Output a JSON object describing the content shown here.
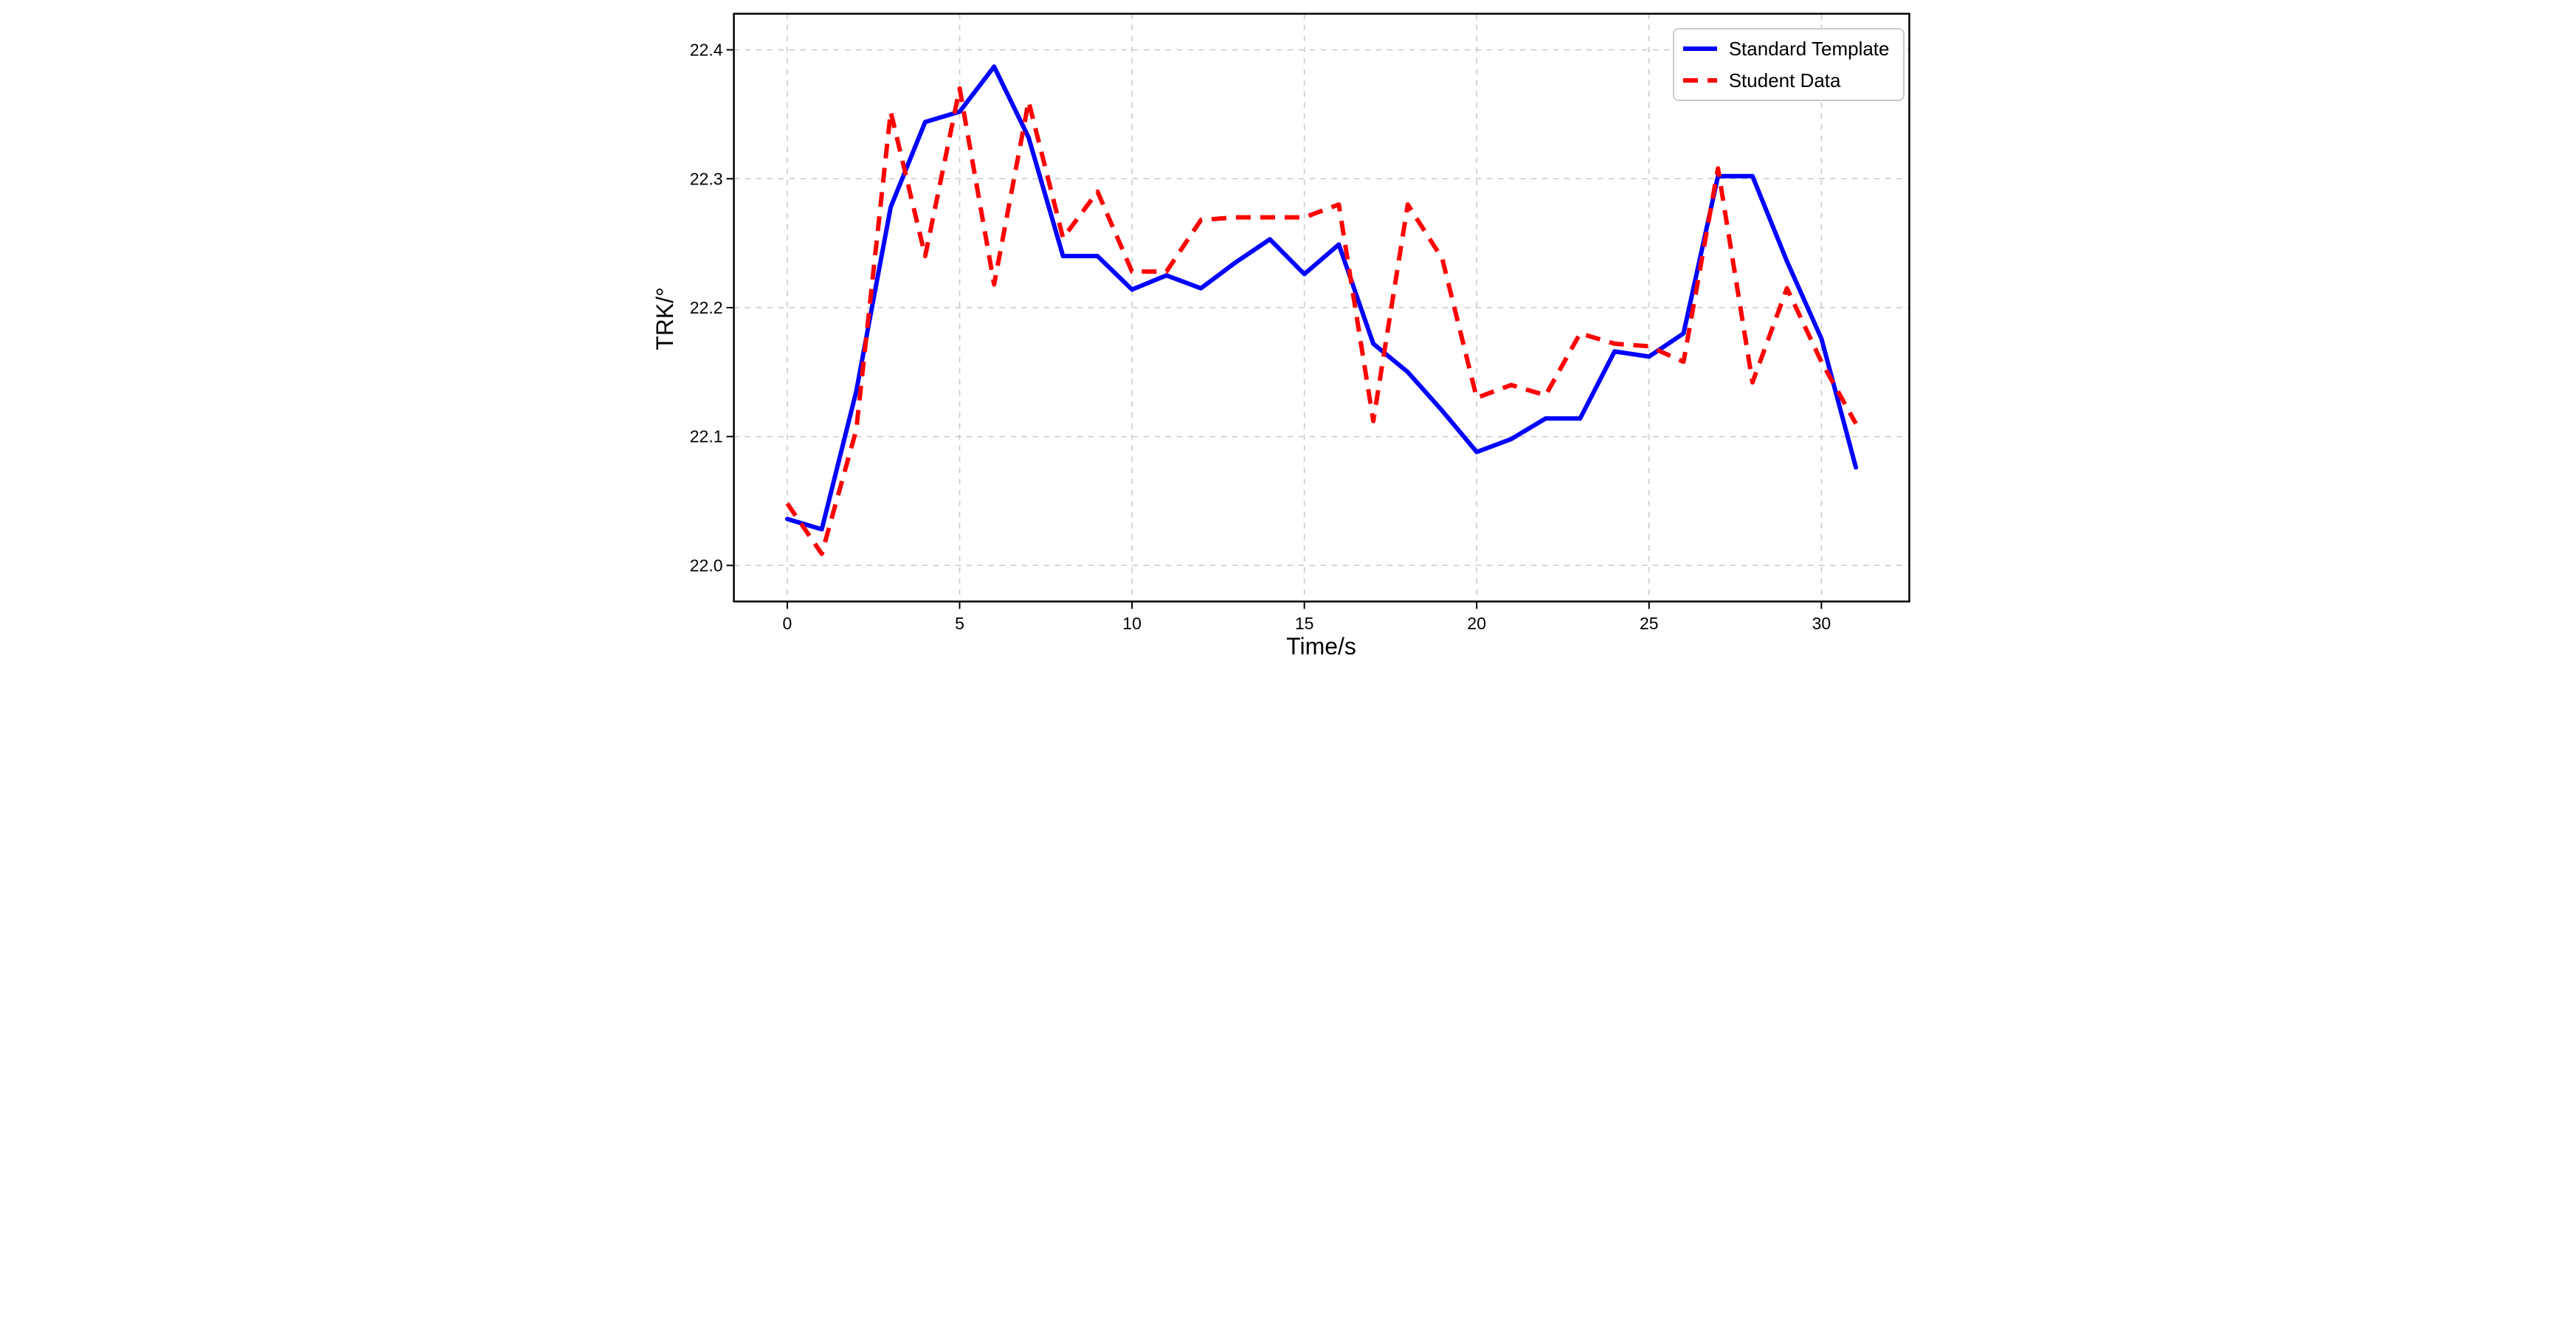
{
  "chart_data": {
    "type": "line",
    "title": "",
    "xlabel": "Time/s",
    "ylabel": "TRK/°",
    "x": [
      0,
      1,
      2,
      3,
      4,
      5,
      6,
      7,
      8,
      9,
      10,
      11,
      12,
      13,
      14,
      15,
      16,
      17,
      18,
      19,
      20,
      21,
      22,
      23,
      24,
      25,
      26,
      27,
      28,
      29,
      30,
      31
    ],
    "series": [
      {
        "name": "Standard Template",
        "color": "#0000ff",
        "line_style": "solid",
        "values": [
          22.036,
          22.028,
          22.135,
          22.278,
          22.344,
          22.352,
          22.387,
          22.332,
          22.24,
          22.24,
          22.214,
          22.225,
          22.215,
          22.235,
          22.253,
          22.226,
          22.249,
          22.172,
          22.15,
          22.12,
          22.088,
          22.098,
          22.114,
          22.114,
          22.166,
          22.162,
          22.18,
          22.302,
          22.302,
          22.236,
          22.176,
          22.076
        ]
      },
      {
        "name": "Student Data",
        "color": "#ff0000",
        "line_style": "dashed",
        "values": [
          22.048,
          22.009,
          22.105,
          22.352,
          22.24,
          22.37,
          22.218,
          22.36,
          22.254,
          22.29,
          22.228,
          22.228,
          22.268,
          22.27,
          22.27,
          22.27,
          22.28,
          22.112,
          22.28,
          22.238,
          22.13,
          22.14,
          22.132,
          22.18,
          22.172,
          22.17,
          22.158,
          22.308,
          22.142,
          22.215,
          22.158,
          22.11
        ]
      }
    ],
    "xticks": [
      0,
      5,
      10,
      15,
      20,
      25,
      30
    ],
    "yticks": [
      22.0,
      22.1,
      22.2,
      22.3,
      22.4
    ],
    "xlim": [
      -1.55,
      32.55
    ],
    "ylim": [
      21.972,
      22.428
    ],
    "grid": true,
    "grid_color": "#c8c8c8",
    "axis_color": "#000000",
    "legend_position": "upper right"
  }
}
